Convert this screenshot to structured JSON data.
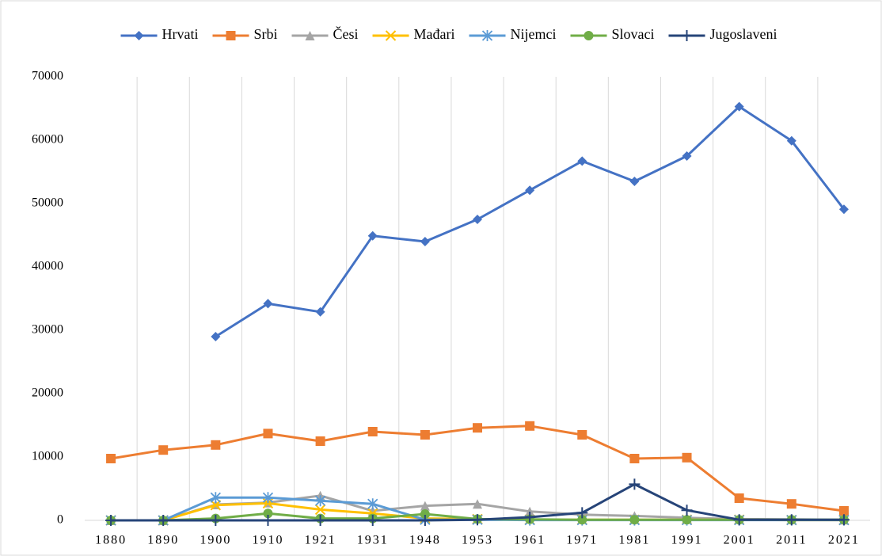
{
  "chart_data": {
    "type": "line",
    "categories": [
      "1880",
      "1890",
      "1900",
      "1910",
      "1921",
      "1931",
      "1948",
      "1953",
      "1961",
      "1971",
      "1981",
      "1991",
      "2001",
      "2011",
      "2021"
    ],
    "series": [
      {
        "name": "Hrvati",
        "color": "#4472c4",
        "marker": "diamond",
        "values": [
          null,
          null,
          29000,
          34200,
          32900,
          44900,
          44000,
          47500,
          52100,
          56700,
          53500,
          57500,
          65300,
          59900,
          49100
        ]
      },
      {
        "name": "Srbi",
        "color": "#ed7d31",
        "marker": "square",
        "values": [
          9750,
          11100,
          11900,
          13700,
          12500,
          14000,
          13500,
          14600,
          14900,
          13500,
          9750,
          9900,
          3500,
          2600,
          1500
        ]
      },
      {
        "name": "Česi",
        "color": "#a5a5a5",
        "marker": "triangle",
        "values": [
          0,
          0,
          2500,
          2800,
          3900,
          1500,
          2300,
          2600,
          1400,
          900,
          700,
          400,
          200,
          150,
          100
        ]
      },
      {
        "name": "Mađari",
        "color": "#ffc000",
        "marker": "x",
        "values": [
          0,
          0,
          2400,
          2700,
          1700,
          1100,
          300,
          200,
          100,
          100,
          100,
          100,
          100,
          50,
          50
        ]
      },
      {
        "name": "Nijemci",
        "color": "#5b9bd5",
        "marker": "star",
        "values": [
          0,
          0,
          3600,
          3600,
          3100,
          2600,
          100,
          100,
          50,
          50,
          50,
          50,
          50,
          50,
          50
        ]
      },
      {
        "name": "Slovaci",
        "color": "#70ad47",
        "marker": "circle",
        "values": [
          0,
          0,
          300,
          1100,
          300,
          300,
          1000,
          200,
          150,
          100,
          100,
          100,
          100,
          100,
          100
        ]
      },
      {
        "name": "Jugoslaveni",
        "color": "#264478",
        "marker": "plus",
        "values": [
          0,
          0,
          0,
          0,
          0,
          0,
          0,
          100,
          500,
          1200,
          5700,
          1600,
          100,
          100,
          100
        ]
      }
    ],
    "ylim": [
      0,
      70000
    ],
    "yticks": [
      0,
      10000,
      20000,
      30000,
      40000,
      50000,
      60000,
      70000
    ],
    "grid": "x",
    "legend": "top"
  }
}
